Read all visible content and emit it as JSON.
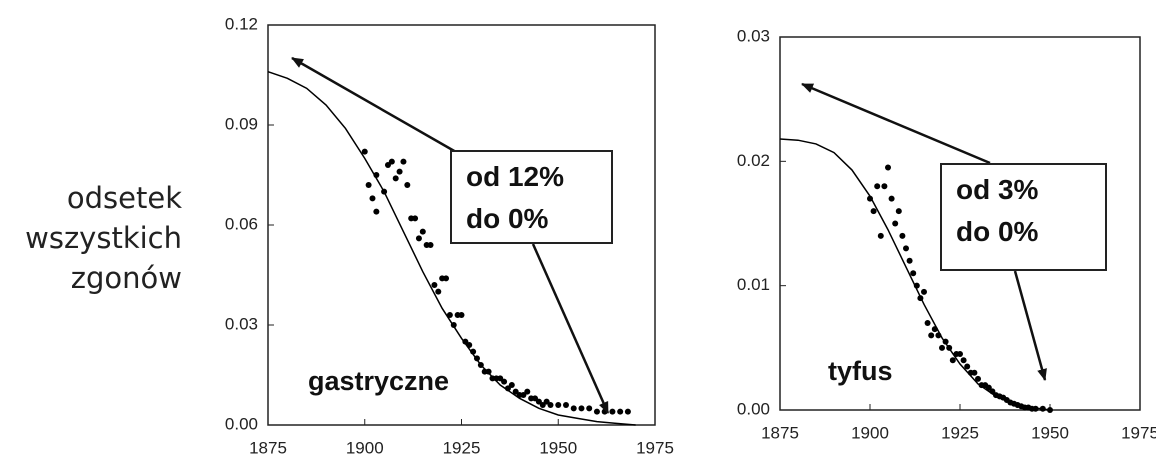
{
  "ylabel": "odsetek wszystkich zgonów",
  "chart_data": [
    {
      "type": "scatter",
      "color": "#000000",
      "xlim": [
        1875,
        1975
      ],
      "xticks": [
        1875,
        1900,
        1925,
        1950,
        1975
      ],
      "ylim": [
        0,
        0.12
      ],
      "yticks": [
        {
          "value": 0,
          "label": "0.00"
        },
        0.03,
        0.06,
        0.09,
        0.12
      ],
      "annotations": [
        "gastryczne",
        "od 12%\ndo 0%"
      ],
      "series": [
        {
          "type": "scatter",
          "x": [
            1900,
            1901,
            1902,
            1903,
            1903,
            1905,
            1906,
            1907,
            1908,
            1909,
            1910,
            1911,
            1912,
            1913,
            1914,
            1915,
            1916,
            1917,
            1918,
            1919,
            1920,
            1921,
            1922,
            1923,
            1924,
            1925,
            1926,
            1927,
            1928,
            1929,
            1930,
            1931,
            1932,
            1933,
            1934,
            1935,
            1936,
            1937,
            1938,
            1939,
            1940,
            1941,
            1942,
            1943,
            1944,
            1945,
            1946,
            1947,
            1948,
            1950,
            1952,
            1954,
            1956,
            1958,
            1960,
            1962,
            1964,
            1966,
            1968
          ],
          "values": [
            0.082,
            0.072,
            0.068,
            0.064,
            0.075,
            0.07,
            0.078,
            0.079,
            0.074,
            0.076,
            0.079,
            0.072,
            0.062,
            0.062,
            0.056,
            0.058,
            0.054,
            0.054,
            0.042,
            0.04,
            0.044,
            0.044,
            0.033,
            0.03,
            0.033,
            0.033,
            0.025,
            0.024,
            0.022,
            0.02,
            0.018,
            0.016,
            0.016,
            0.014,
            0.014,
            0.014,
            0.013,
            0.011,
            0.012,
            0.01,
            0.009,
            0.009,
            0.01,
            0.008,
            0.008,
            0.007,
            0.006,
            0.007,
            0.006,
            0.006,
            0.006,
            0.005,
            0.005,
            0.005,
            0.004,
            0.004,
            0.004,
            0.004,
            0.004
          ]
        },
        {
          "type": "line",
          "x": [
            1875,
            1880,
            1885,
            1890,
            1895,
            1900,
            1905,
            1910,
            1915,
            1920,
            1925,
            1930,
            1935,
            1940,
            1945,
            1950,
            1955,
            1960,
            1965,
            1970
          ],
          "values": [
            0.106,
            0.104,
            0.101,
            0.096,
            0.089,
            0.08,
            0.07,
            0.058,
            0.046,
            0.035,
            0.026,
            0.018,
            0.012,
            0.008,
            0.005,
            0.003,
            0.002,
            0.001,
            0.0005,
            0
          ]
        }
      ]
    },
    {
      "type": "scatter",
      "color": "#000000",
      "xlim": [
        1875,
        1975
      ],
      "xticks": [
        1875,
        1900,
        1925,
        1950,
        1975
      ],
      "ylim": [
        0,
        0.03
      ],
      "yticks": [
        {
          "value": 0,
          "label": "0.00"
        },
        0.01,
        0.02,
        0.03
      ],
      "annotations": [
        "tyfus",
        "od 3%\ndo 0%"
      ],
      "series": [
        {
          "type": "scatter",
          "x": [
            1900,
            1901,
            1902,
            1903,
            1904,
            1905,
            1906,
            1907,
            1908,
            1909,
            1910,
            1911,
            1912,
            1913,
            1914,
            1915,
            1916,
            1917,
            1918,
            1919,
            1920,
            1921,
            1922,
            1923,
            1924,
            1925,
            1926,
            1927,
            1928,
            1929,
            1930,
            1931,
            1932,
            1933,
            1934,
            1935,
            1936,
            1937,
            1938,
            1939,
            1940,
            1941,
            1942,
            1943,
            1944,
            1945,
            1946,
            1948,
            1950
          ],
          "values": [
            0.017,
            0.016,
            0.018,
            0.014,
            0.018,
            0.0195,
            0.017,
            0.015,
            0.016,
            0.014,
            0.013,
            0.012,
            0.011,
            0.01,
            0.009,
            0.0095,
            0.007,
            0.006,
            0.0065,
            0.006,
            0.005,
            0.0055,
            0.005,
            0.004,
            0.0045,
            0.0045,
            0.004,
            0.0035,
            0.003,
            0.003,
            0.0025,
            0.002,
            0.002,
            0.0018,
            0.0015,
            0.0012,
            0.0011,
            0.001,
            0.0008,
            0.0006,
            0.0005,
            0.0004,
            0.0003,
            0.0002,
            0.0002,
            0.0001,
            0.0001,
            0.0001,
            0
          ]
        },
        {
          "type": "line",
          "x": [
            1875,
            1880,
            1885,
            1890,
            1895,
            1900,
            1905,
            1910,
            1915,
            1920,
            1925,
            1930,
            1935,
            1940,
            1945,
            1950
          ],
          "values": [
            0.0218,
            0.0217,
            0.0214,
            0.0207,
            0.0193,
            0.0172,
            0.0145,
            0.0115,
            0.0085,
            0.0058,
            0.0037,
            0.0021,
            0.0011,
            0.0005,
            0.0002,
            0
          ]
        }
      ]
    }
  ]
}
